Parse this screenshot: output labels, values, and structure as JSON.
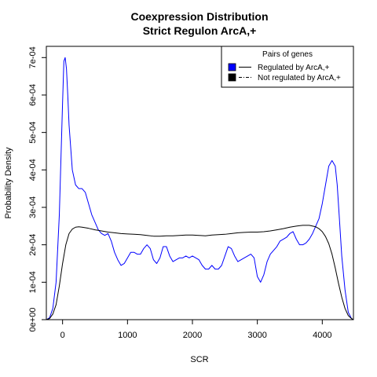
{
  "chart_data": {
    "type": "line",
    "title": "Coexpression Distribution",
    "subtitle": "Strict Regulon ArcA,+",
    "xlabel": "SCR",
    "ylabel": "Probability Density",
    "xlim": [
      -250,
      4480
    ],
    "ylim": [
      0,
      0.00073
    ],
    "x_ticks": [
      0,
      1000,
      2000,
      3000,
      4000
    ],
    "x_tick_labels": [
      "0",
      "1000",
      "2000",
      "3000",
      "4000"
    ],
    "y_ticks": [
      0,
      0.0001,
      0.0002,
      0.0003,
      0.0004,
      0.0005,
      0.0006,
      0.0007
    ],
    "y_tick_labels": [
      "0e+00",
      "1e-04",
      "2e-04",
      "3e-04",
      "4e-04",
      "5e-04",
      "6e-04",
      "7e-04"
    ],
    "grid": false,
    "legend": {
      "title": "Pairs of genes",
      "placement": "top-right",
      "entries": [
        "Regulated by  ArcA,+",
        "Not regulated by  ArcA,+"
      ]
    },
    "series": [
      {
        "name": "Regulated by  ArcA,+",
        "color": "#0000ff",
        "x": [
          -250,
          -200,
          -150,
          -100,
          -50,
          0,
          20,
          40,
          60,
          80,
          100,
          150,
          200,
          250,
          300,
          350,
          400,
          450,
          500,
          550,
          600,
          650,
          700,
          750,
          800,
          850,
          900,
          950,
          1000,
          1050,
          1100,
          1150,
          1200,
          1250,
          1300,
          1350,
          1400,
          1450,
          1500,
          1550,
          1600,
          1650,
          1700,
          1750,
          1800,
          1850,
          1900,
          1950,
          2000,
          2050,
          2100,
          2150,
          2200,
          2250,
          2300,
          2350,
          2400,
          2450,
          2500,
          2550,
          2600,
          2650,
          2700,
          2750,
          2800,
          2850,
          2900,
          2950,
          3000,
          3050,
          3100,
          3150,
          3200,
          3250,
          3300,
          3350,
          3400,
          3450,
          3500,
          3550,
          3600,
          3650,
          3700,
          3750,
          3800,
          3850,
          3900,
          3950,
          4000,
          4050,
          4100,
          4150,
          4200,
          4230,
          4260,
          4300,
          4350,
          4400,
          4450,
          4480
        ],
        "y": [
          0.0,
          5e-06,
          3e-05,
          0.0001,
          0.00028,
          0.00058,
          0.00069,
          0.0007,
          0.00067,
          0.0006,
          0.00052,
          0.0004,
          0.00036,
          0.00035,
          0.00035,
          0.00034,
          0.00031,
          0.00028,
          0.00026,
          0.00024,
          0.00023,
          0.000225,
          0.00023,
          0.00021,
          0.00018,
          0.00016,
          0.000145,
          0.00015,
          0.000165,
          0.00018,
          0.00018,
          0.000175,
          0.000175,
          0.00019,
          0.0002,
          0.00019,
          0.00016,
          0.00015,
          0.000165,
          0.000195,
          0.000195,
          0.00017,
          0.000155,
          0.00016,
          0.000165,
          0.000165,
          0.00017,
          0.000165,
          0.00017,
          0.000165,
          0.00016,
          0.000145,
          0.000135,
          0.000135,
          0.000145,
          0.000135,
          0.000135,
          0.000145,
          0.00017,
          0.000195,
          0.00019,
          0.00017,
          0.000155,
          0.00016,
          0.000165,
          0.00017,
          0.000175,
          0.000165,
          0.000115,
          0.0001,
          0.00012,
          0.000155,
          0.000175,
          0.000185,
          0.000195,
          0.00021,
          0.000215,
          0.00022,
          0.00023,
          0.000235,
          0.000215,
          0.0002,
          0.0002,
          0.000205,
          0.000215,
          0.00023,
          0.00025,
          0.00027,
          0.00031,
          0.00036,
          0.00041,
          0.000425,
          0.00041,
          0.00036,
          0.00028,
          0.00017,
          8e-05,
          2e-05,
          3e-06,
          0.0
        ]
      },
      {
        "name": "Not regulated by  ArcA,+",
        "color": "#000000",
        "x": [
          -250,
          -200,
          -150,
          -100,
          -50,
          0,
          50,
          100,
          150,
          200,
          250,
          300,
          400,
          500,
          600,
          700,
          800,
          900,
          1000,
          1100,
          1200,
          1300,
          1400,
          1500,
          1600,
          1700,
          1800,
          1900,
          2000,
          2100,
          2200,
          2300,
          2400,
          2500,
          2600,
          2700,
          2800,
          2900,
          3000,
          3100,
          3200,
          3300,
          3400,
          3500,
          3600,
          3700,
          3800,
          3900,
          3950,
          4000,
          4050,
          4100,
          4150,
          4200,
          4250,
          4300,
          4350,
          4400,
          4450,
          4480
        ],
        "y": [
          0.0,
          3e-06,
          1.5e-05,
          4e-05,
          9e-05,
          0.00015,
          0.0002,
          0.00023,
          0.000242,
          0.000247,
          0.000248,
          0.000247,
          0.000244,
          0.00024,
          0.000237,
          0.000234,
          0.000232,
          0.00023,
          0.000229,
          0.000228,
          0.000227,
          0.000225,
          0.000223,
          0.000223,
          0.000224,
          0.000224,
          0.000225,
          0.000226,
          0.000226,
          0.000225,
          0.000224,
          0.000226,
          0.000227,
          0.000228,
          0.00023,
          0.000232,
          0.000233,
          0.000234,
          0.000234,
          0.000235,
          0.000237,
          0.00024,
          0.000243,
          0.000247,
          0.00025,
          0.000252,
          0.000252,
          0.000248,
          0.000243,
          0.000235,
          0.000222,
          0.000203,
          0.000175,
          0.000138,
          9.7e-05,
          6e-05,
          3e-05,
          1.1e-05,
          3e-06,
          0.0
        ]
      }
    ]
  }
}
